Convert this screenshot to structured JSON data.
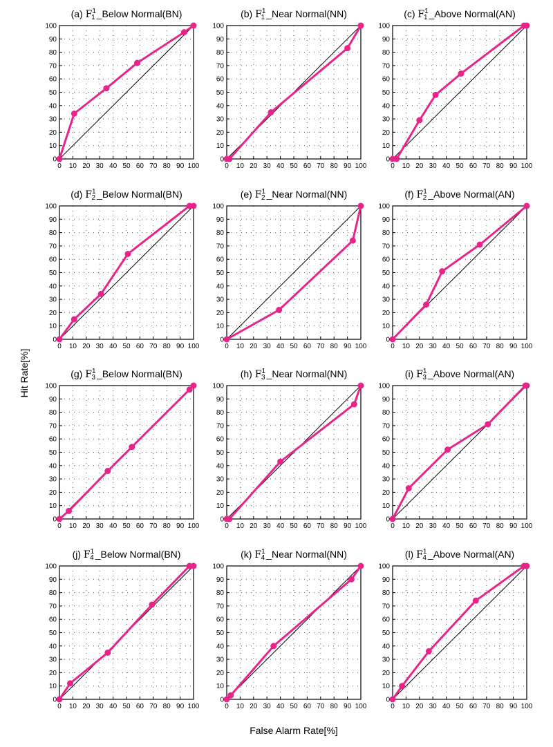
{
  "figure": {
    "ylabel": "Hit Rate[%]",
    "xlabel": "False Alarm Rate[%]",
    "line_color": "#e8248a",
    "diag_color": "#000000"
  },
  "chart_data": [
    {
      "type": "line",
      "prefix": "(a) ",
      "var": "F",
      "sub": "1",
      "sup": "1",
      "suffix": "_Below Normal(BN)",
      "xlim": [
        0,
        100
      ],
      "ylim": [
        0,
        100
      ],
      "xticks": [
        0,
        10,
        20,
        30,
        40,
        50,
        60,
        70,
        80,
        90,
        100
      ],
      "yticks": [
        0,
        10,
        20,
        30,
        40,
        50,
        60,
        70,
        80,
        90,
        100
      ],
      "grid": true,
      "x": [
        0,
        11,
        35,
        58,
        93,
        100
      ],
      "y": [
        0,
        34,
        53,
        72,
        95,
        100
      ]
    },
    {
      "type": "line",
      "prefix": "(b) ",
      "var": "F",
      "sub": "1",
      "sup": "1",
      "suffix": "_Near Normal(NN)",
      "xlim": [
        0,
        100
      ],
      "ylim": [
        0,
        100
      ],
      "xticks": [
        0,
        10,
        20,
        30,
        40,
        50,
        60,
        70,
        80,
        90,
        100
      ],
      "yticks": [
        0,
        10,
        20,
        30,
        40,
        50,
        60,
        70,
        80,
        90,
        100
      ],
      "grid": true,
      "x": [
        0,
        2,
        33,
        90,
        100
      ],
      "y": [
        0,
        0,
        35,
        83,
        100
      ]
    },
    {
      "type": "line",
      "prefix": "(c) ",
      "var": "F",
      "sub": "1",
      "sup": "1",
      "suffix": "_Above Normal(AN)",
      "xlim": [
        0,
        100
      ],
      "ylim": [
        0,
        100
      ],
      "xticks": [
        0,
        10,
        20,
        30,
        40,
        50,
        60,
        70,
        80,
        90,
        100
      ],
      "yticks": [
        0,
        10,
        20,
        30,
        40,
        50,
        60,
        70,
        80,
        90,
        100
      ],
      "grid": true,
      "x": [
        0,
        3,
        20,
        32,
        51,
        98,
        100
      ],
      "y": [
        0,
        0,
        29,
        48,
        64,
        100,
        100
      ]
    },
    {
      "type": "line",
      "prefix": "(d) ",
      "var": "F",
      "sub": "2",
      "sup": "1",
      "suffix": "_Below Normal(BN)",
      "xlim": [
        0,
        100
      ],
      "ylim": [
        0,
        100
      ],
      "xticks": [
        0,
        10,
        20,
        30,
        40,
        50,
        60,
        70,
        80,
        90,
        100
      ],
      "yticks": [
        0,
        10,
        20,
        30,
        40,
        50,
        60,
        70,
        80,
        90,
        100
      ],
      "grid": true,
      "x": [
        0,
        11,
        31,
        51,
        97,
        100
      ],
      "y": [
        0,
        15,
        34,
        64,
        100,
        100
      ]
    },
    {
      "type": "line",
      "prefix": "(e) ",
      "var": "F",
      "sub": "2",
      "sup": "1",
      "suffix": "_Near Normal(NN)",
      "xlim": [
        0,
        100
      ],
      "ylim": [
        0,
        100
      ],
      "xticks": [
        0,
        10,
        20,
        30,
        40,
        50,
        60,
        70,
        80,
        90,
        100
      ],
      "yticks": [
        0,
        10,
        20,
        30,
        40,
        50,
        60,
        70,
        80,
        90,
        100
      ],
      "grid": true,
      "x": [
        0,
        39,
        94,
        100
      ],
      "y": [
        0,
        22,
        74,
        100
      ]
    },
    {
      "type": "line",
      "prefix": "(f) ",
      "var": "F",
      "sub": "2",
      "sup": "1",
      "suffix": "_Above Normal(AN)",
      "xlim": [
        0,
        100
      ],
      "ylim": [
        0,
        100
      ],
      "xticks": [
        0,
        10,
        20,
        30,
        40,
        50,
        60,
        70,
        80,
        90,
        100
      ],
      "yticks": [
        0,
        10,
        20,
        30,
        40,
        50,
        60,
        70,
        80,
        90,
        100
      ],
      "grid": true,
      "x": [
        0,
        25,
        37,
        65,
        100
      ],
      "y": [
        0,
        26,
        51,
        71,
        100
      ]
    },
    {
      "type": "line",
      "prefix": "(g) ",
      "var": "F",
      "sub": "3",
      "sup": "1",
      "suffix": "_Below Normal(BN)",
      "xlim": [
        0,
        100
      ],
      "ylim": [
        0,
        100
      ],
      "xticks": [
        0,
        10,
        20,
        30,
        40,
        50,
        60,
        70,
        80,
        90,
        100
      ],
      "yticks": [
        0,
        10,
        20,
        30,
        40,
        50,
        60,
        70,
        80,
        90,
        100
      ],
      "grid": true,
      "x": [
        0,
        7,
        36,
        54,
        97,
        100
      ],
      "y": [
        0,
        6,
        36,
        54,
        97,
        100
      ]
    },
    {
      "type": "line",
      "prefix": "(h) ",
      "var": "F",
      "sub": "3",
      "sup": "1",
      "suffix": "_Near Normal(NN)",
      "xlim": [
        0,
        100
      ],
      "ylim": [
        0,
        100
      ],
      "xticks": [
        0,
        10,
        20,
        30,
        40,
        50,
        60,
        70,
        80,
        90,
        100
      ],
      "yticks": [
        0,
        10,
        20,
        30,
        40,
        50,
        60,
        70,
        80,
        90,
        100
      ],
      "grid": true,
      "x": [
        0,
        2,
        40,
        95,
        100
      ],
      "y": [
        0,
        0,
        43,
        86,
        100
      ]
    },
    {
      "type": "line",
      "prefix": "(i) ",
      "var": "F",
      "sub": "3",
      "sup": "1",
      "suffix": "_Above Normal(AN)",
      "xlim": [
        0,
        100
      ],
      "ylim": [
        0,
        100
      ],
      "xticks": [
        0,
        10,
        20,
        30,
        40,
        50,
        60,
        70,
        80,
        90,
        100
      ],
      "yticks": [
        0,
        10,
        20,
        30,
        40,
        50,
        60,
        70,
        80,
        90,
        100
      ],
      "grid": true,
      "x": [
        0,
        12,
        41,
        71,
        99,
        100
      ],
      "y": [
        0,
        23,
        52,
        71,
        100,
        100
      ]
    },
    {
      "type": "line",
      "prefix": "(j) ",
      "var": "F",
      "sub": "4",
      "sup": "1",
      "suffix": "_Below Normal(BN)",
      "xlim": [
        0,
        100
      ],
      "ylim": [
        0,
        100
      ],
      "xticks": [
        0,
        10,
        20,
        30,
        40,
        50,
        60,
        70,
        80,
        90,
        100
      ],
      "yticks": [
        0,
        10,
        20,
        30,
        40,
        50,
        60,
        70,
        80,
        90,
        100
      ],
      "grid": true,
      "x": [
        0,
        8,
        36,
        69,
        97,
        100
      ],
      "y": [
        0,
        12,
        35,
        71,
        100,
        100
      ]
    },
    {
      "type": "line",
      "prefix": "(k) ",
      "var": "F",
      "sub": "4",
      "sup": "1",
      "suffix": "_Near Normal(NN)",
      "xlim": [
        0,
        100
      ],
      "ylim": [
        0,
        100
      ],
      "xticks": [
        0,
        10,
        20,
        30,
        40,
        50,
        60,
        70,
        80,
        90,
        100
      ],
      "yticks": [
        0,
        10,
        20,
        30,
        40,
        50,
        60,
        70,
        80,
        90,
        100
      ],
      "grid": true,
      "x": [
        0,
        3,
        35,
        93,
        100
      ],
      "y": [
        0,
        3,
        40,
        90,
        100
      ]
    },
    {
      "type": "line",
      "prefix": "(l) ",
      "var": "F",
      "sub": "4",
      "sup": "1",
      "suffix": "_Above Normal(AN)",
      "xlim": [
        0,
        100
      ],
      "ylim": [
        0,
        100
      ],
      "xticks": [
        0,
        10,
        20,
        30,
        40,
        50,
        60,
        70,
        80,
        90,
        100
      ],
      "yticks": [
        0,
        10,
        20,
        30,
        40,
        50,
        60,
        70,
        80,
        90,
        100
      ],
      "grid": true,
      "x": [
        0,
        7,
        27,
        62,
        98,
        100
      ],
      "y": [
        0,
        10,
        36,
        74,
        100,
        100
      ]
    }
  ]
}
